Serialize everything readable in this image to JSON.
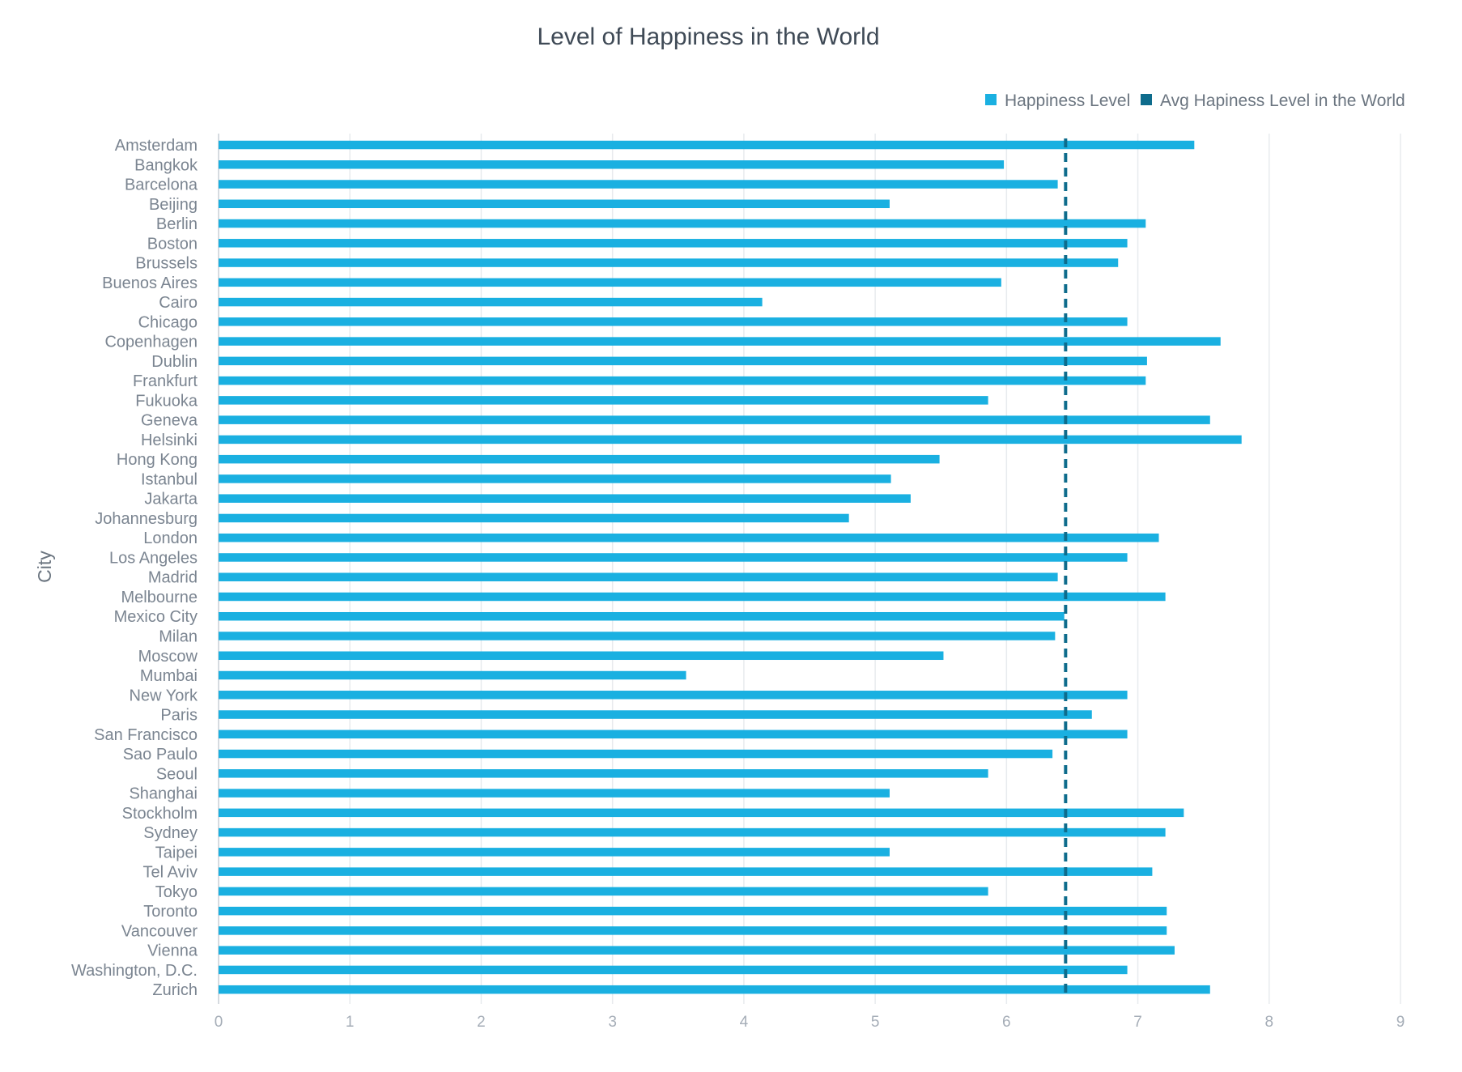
{
  "chart_data": {
    "type": "bar",
    "orientation": "horizontal",
    "title": "Level of Happiness in the World",
    "ylabel": "City",
    "xlabel": "",
    "xlim": [
      0,
      9
    ],
    "x_ticks": [
      0,
      1,
      2,
      3,
      4,
      5,
      6,
      7,
      8,
      9
    ],
    "grid": true,
    "legend_position": "top-right",
    "categories": [
      "Amsterdam",
      "Bangkok",
      "Barcelona",
      "Beijing",
      "Berlin",
      "Boston",
      "Brussels",
      "Buenos Aires",
      "Cairo",
      "Chicago",
      "Copenhagen",
      "Dublin",
      "Frankfurt",
      "Fukuoka",
      "Geneva",
      "Helsinki",
      "Hong Kong",
      "Istanbul",
      "Jakarta",
      "Johannesburg",
      "London",
      "Los Angeles",
      "Madrid",
      "Melbourne",
      "Mexico City",
      "Milan",
      "Moscow",
      "Mumbai",
      "New York",
      "Paris",
      "San Francisco",
      "Sao Paulo",
      "Seoul",
      "Shanghai",
      "Stockholm",
      "Sydney",
      "Taipei",
      "Tel Aviv",
      "Tokyo",
      "Toronto",
      "Vancouver",
      "Vienna",
      "Washington, D.C.",
      "Zurich"
    ],
    "series": [
      {
        "name": "Happiness Level",
        "color": "#1ab0e1",
        "values": [
          7.43,
          5.98,
          6.39,
          5.11,
          7.06,
          6.92,
          6.85,
          5.96,
          4.14,
          6.92,
          7.63,
          7.07,
          7.06,
          5.86,
          7.55,
          7.79,
          5.49,
          5.12,
          5.27,
          4.8,
          7.16,
          6.92,
          6.39,
          7.21,
          6.44,
          6.37,
          5.52,
          3.56,
          6.92,
          6.65,
          6.92,
          6.35,
          5.86,
          5.11,
          7.35,
          7.21,
          5.11,
          7.11,
          5.86,
          7.22,
          7.22,
          7.28,
          6.92,
          7.55
        ]
      },
      {
        "name": "Avg Hapiness Level in the World",
        "color": "#0e6c8c",
        "type": "reference-line",
        "style": "dashed",
        "value": 6.45
      }
    ]
  }
}
